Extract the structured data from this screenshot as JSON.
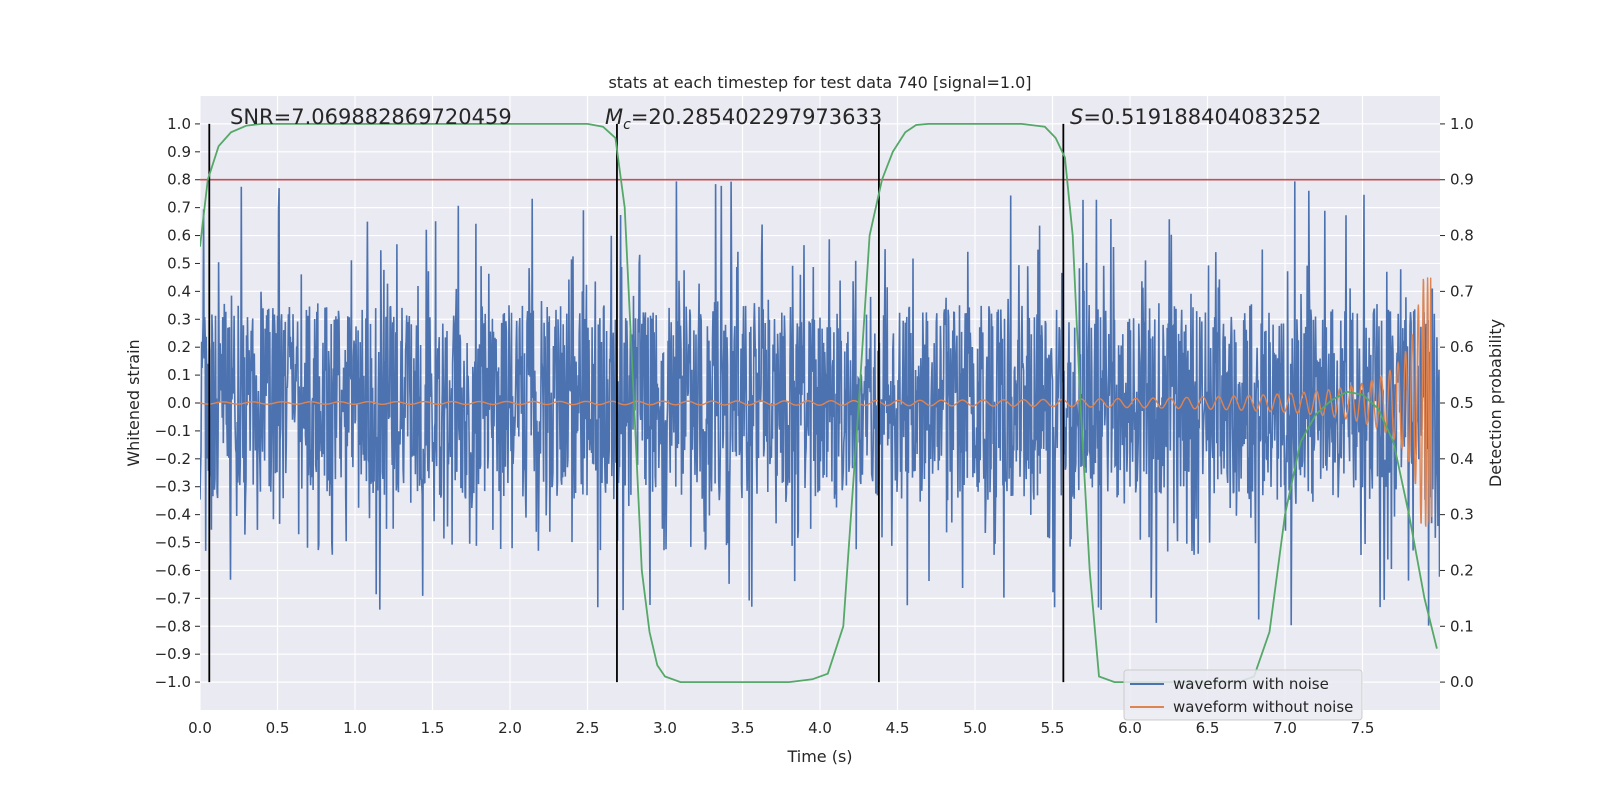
{
  "chart_data": {
    "type": "line",
    "title": "stats at each timestep for test data 740 [signal=1.0]",
    "xlabel": "Time (s)",
    "ylabel": "Whitened strain",
    "y2label": "Detection probability",
    "xlim": [
      0.0,
      8.0
    ],
    "ylim": [
      -1.1,
      1.1
    ],
    "y2lim": [
      -0.05,
      1.05
    ],
    "xticks": [
      "0.0",
      "0.5",
      "1.0",
      "1.5",
      "2.0",
      "2.5",
      "3.0",
      "3.5",
      "4.0",
      "4.5",
      "5.0",
      "5.5",
      "6.0",
      "6.5",
      "7.0",
      "7.5"
    ],
    "yticks": [
      "1.0",
      "0.9",
      "0.8",
      "0.7",
      "0.6",
      "0.5",
      "0.4",
      "0.3",
      "0.2",
      "0.1",
      "0.0",
      "−0.1",
      "−0.2",
      "−0.3",
      "−0.4",
      "−0.5",
      "−0.6",
      "−0.7",
      "−0.8",
      "−0.9",
      "−1.0"
    ],
    "y2ticks": [
      "1.0",
      "0.9",
      "0.8",
      "0.7",
      "0.6",
      "0.5",
      "0.4",
      "0.3",
      "0.2",
      "0.1",
      "0.0"
    ],
    "grid": true,
    "legend_position": "lower-right",
    "annotations": {
      "snr": "SNR=7.069882869720459",
      "mc_symbol": "M",
      "mc_sub": "c",
      "mc_value": "=20.285402297973633",
      "s_symbol": "S",
      "s_value": "=0.519188404083252"
    },
    "threshold_line": {
      "y": 0.9,
      "axis": "right",
      "color": "#c44e52"
    },
    "vertical_lines_x": [
      0.06,
      2.69,
      4.38,
      5.57
    ],
    "series": [
      {
        "name": "waveform with noise",
        "color": "#4c72b0",
        "description_of_values": "noise band about ±0.35 with spikes",
        "band_amplitude": 0.35
      },
      {
        "name": "waveform without noise",
        "color": "#dd8452",
        "chirp_start_amplitude": 0.004,
        "chirp_end_amplitude": 0.45,
        "merger_time": 7.95
      },
      {
        "name": "detection probability",
        "axis": "right",
        "color": "#55a868",
        "x": [
          0.0,
          0.05,
          0.12,
          0.2,
          0.3,
          0.4,
          0.6,
          1.0,
          1.5,
          2.0,
          2.5,
          2.6,
          2.68,
          2.74,
          2.8,
          2.85,
          2.9,
          2.95,
          3.0,
          3.1,
          3.5,
          3.8,
          3.95,
          4.05,
          4.15,
          4.25,
          4.32,
          4.4,
          4.47,
          4.55,
          4.62,
          4.7,
          5.0,
          5.3,
          5.45,
          5.52,
          5.58,
          5.63,
          5.68,
          5.74,
          5.8,
          5.9,
          6.2,
          6.5,
          6.7,
          6.8,
          6.9,
          7.0,
          7.1,
          7.2,
          7.3,
          7.4,
          7.5,
          7.6,
          7.7,
          7.8,
          7.9,
          7.98
        ],
        "y": [
          0.78,
          0.9,
          0.96,
          0.985,
          0.997,
          1.0,
          1.0,
          1.0,
          1.0,
          1.0,
          1.0,
          0.995,
          0.975,
          0.85,
          0.5,
          0.2,
          0.09,
          0.03,
          0.01,
          0.0,
          0.0,
          0.0,
          0.005,
          0.015,
          0.1,
          0.5,
          0.8,
          0.9,
          0.95,
          0.985,
          0.998,
          1.0,
          1.0,
          1.0,
          0.995,
          0.975,
          0.94,
          0.8,
          0.5,
          0.2,
          0.01,
          0.0,
          0.0,
          0.0,
          0.0,
          0.01,
          0.09,
          0.3,
          0.43,
          0.48,
          0.505,
          0.52,
          0.515,
          0.49,
          0.43,
          0.3,
          0.15,
          0.06
        ]
      }
    ]
  }
}
